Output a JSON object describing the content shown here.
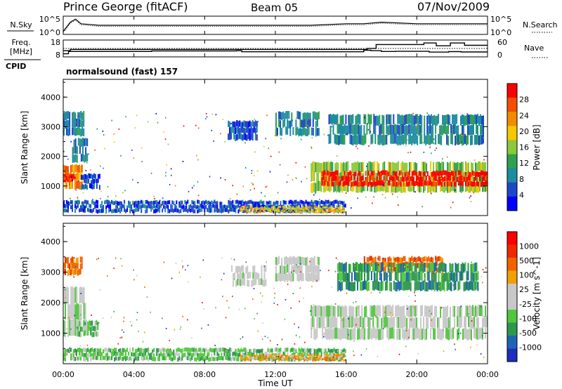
{
  "header": {
    "station": "Prince George (fitACF)",
    "beam": "Beam 05",
    "date": "07/Nov/2009"
  },
  "colors": {
    "power_scale": [
      "#0000ff",
      "#1e46c8",
      "#1e8ca0",
      "#2fa050",
      "#8cc83c",
      "#f5c800",
      "#f08c00",
      "#f05000",
      "#ff0000"
    ],
    "velocity_scale": [
      "#1e2dbe",
      "#1e64b4",
      "#2f9650",
      "#50c83c",
      "#c8c8c8",
      "#c8c8c8",
      "#f0a000",
      "#f06400",
      "#f02800",
      "#ff0000"
    ],
    "gray": "#c8c8c8"
  },
  "chart_data": [
    {
      "type": "line",
      "panel": "nsky-nsearch",
      "left_label": "N.Sky",
      "right_label": "N.Search",
      "left_ticks": [
        "10^5",
        "10^0"
      ],
      "right_ticks": [
        "10^5",
        "10^0"
      ],
      "x_hours": [
        0.0,
        0.4,
        0.7,
        1.0,
        2.0,
        4.0,
        6.0,
        8.0,
        10.0,
        12.0,
        14.0,
        16.0,
        17.0,
        18.0,
        20.0,
        22.0,
        24.0
      ],
      "nsky_level": [
        1,
        7,
        9,
        6,
        5,
        5,
        5,
        5,
        5,
        5,
        5,
        6,
        6,
        7,
        6,
        6,
        6
      ]
    },
    {
      "type": "line",
      "panel": "freq-nave",
      "left_label": "Freq.",
      "left_unit": "[MHz]",
      "right_label": "Nave",
      "left_ticks": [
        "18",
        "8"
      ],
      "right_ticks": [
        "60",
        "0"
      ],
      "freq_steps": [
        [
          0.0,
          10.0
        ],
        [
          0.3,
          11.5
        ],
        [
          5.0,
          11.8
        ],
        [
          9.8,
          12.0
        ],
        [
          10.1,
          11.3
        ],
        [
          15.8,
          11.3
        ],
        [
          17.0,
          12.3
        ],
        [
          17.4,
          12.0
        ],
        [
          18.0,
          11.5
        ],
        [
          18.8,
          11.6
        ],
        [
          20.7,
          11.1
        ],
        [
          21.8,
          11.4
        ],
        [
          22.5,
          11.2
        ],
        [
          24.0,
          11.2
        ]
      ],
      "nave_steps": [
        [
          0.0,
          12.0
        ],
        [
          0.4,
          12.8
        ],
        [
          17.2,
          13.5
        ],
        [
          17.7,
          16.0
        ],
        [
          20.3,
          16.0
        ],
        [
          20.4,
          17.0
        ],
        [
          21.0,
          17.0
        ],
        [
          21.1,
          15.2
        ],
        [
          21.8,
          15.2
        ],
        [
          21.9,
          17.0
        ],
        [
          22.6,
          17.0
        ],
        [
          22.7,
          15.5
        ],
        [
          24.0,
          15.5
        ]
      ]
    },
    {
      "type": "heatmap",
      "panel": "power",
      "cpid_label": "CPID",
      "cpid_text": "normalsound (fast) 157",
      "ylabel": "Slant Range [km]",
      "ylim": [
        0,
        4600
      ],
      "yticks": [
        "4000",
        "3000",
        "2000",
        "1000"
      ],
      "colorbar_label": "Power [dB]",
      "colorbar_ticks": [
        "28",
        "24",
        "20",
        "16",
        "12",
        "8",
        "4"
      ],
      "regions": [
        {
          "t0": 0.0,
          "t1": 1.1,
          "r0": 900,
          "r1": 1700,
          "level": 6
        },
        {
          "t0": 0.0,
          "t1": 1.2,
          "r0": 2700,
          "r1": 3500,
          "level": 2
        },
        {
          "t0": 0.0,
          "t1": 0.7,
          "r0": 1150,
          "r1": 1400,
          "level": 8
        },
        {
          "t0": 0.5,
          "t1": 1.4,
          "r0": 1800,
          "r1": 2600,
          "level": 2
        },
        {
          "t0": 1.0,
          "t1": 2.1,
          "r0": 900,
          "r1": 1400,
          "level": 1
        },
        {
          "t0": 9.3,
          "t1": 11.0,
          "r0": 2550,
          "r1": 3200,
          "level": 1
        },
        {
          "t0": 12.0,
          "t1": 14.5,
          "r0": 2700,
          "r1": 3500,
          "level": 2
        },
        {
          "t0": 14.0,
          "t1": 24.0,
          "r0": 800,
          "r1": 1800,
          "level": 4
        },
        {
          "t0": 14.6,
          "t1": 24.0,
          "r0": 1000,
          "r1": 1500,
          "level": 8
        },
        {
          "t0": 15.0,
          "t1": 23.8,
          "r0": 2400,
          "r1": 3400,
          "level": 2
        },
        {
          "t0": 0.0,
          "t1": 16.0,
          "r0": 100,
          "r1": 500,
          "level": 1
        },
        {
          "t0": 10.0,
          "t1": 16.0,
          "r0": 100,
          "r1": 300,
          "level": 5
        }
      ]
    },
    {
      "type": "heatmap",
      "panel": "velocity",
      "ylabel": "Slant Range [km]",
      "ylim": [
        0,
        4600
      ],
      "yticks": [
        "4000",
        "3000",
        "2000",
        "1000"
      ],
      "xlabel": "Time UT",
      "xlim": [
        0,
        24
      ],
      "xticks": [
        "00:00",
        "04:00",
        "08:00",
        "12:00",
        "16:00",
        "20:00",
        "00:00"
      ],
      "colorbar_label": "Velocity [m s^-1]",
      "colorbar_ticks": [
        "1000",
        "500",
        "100",
        "25",
        "-25",
        "-100",
        "-500",
        "-1000"
      ],
      "regions": [
        {
          "t0": 0.0,
          "t1": 1.3,
          "r0": 900,
          "r1": 2500,
          "level": 4
        },
        {
          "t0": 0.0,
          "t1": 1.1,
          "r0": 2900,
          "r1": 3500,
          "level": 7
        },
        {
          "t0": 0.8,
          "t1": 2.0,
          "r0": 900,
          "r1": 1400,
          "level": 3
        },
        {
          "t0": 9.5,
          "t1": 11.5,
          "r0": 2550,
          "r1": 3200,
          "level": 4
        },
        {
          "t0": 12.0,
          "t1": 14.5,
          "r0": 2700,
          "r1": 3500,
          "level": 4
        },
        {
          "t0": 14.0,
          "t1": 24.0,
          "r0": 800,
          "r1": 1900,
          "level": 4
        },
        {
          "t0": 17.0,
          "t1": 21.5,
          "r0": 3000,
          "r1": 3500,
          "level": 7
        },
        {
          "t0": 15.5,
          "t1": 23.5,
          "r0": 2400,
          "r1": 3300,
          "level": 2
        },
        {
          "t0": 0.0,
          "t1": 16.0,
          "r0": 100,
          "r1": 500,
          "level": 3
        },
        {
          "t0": 10.0,
          "t1": 16.0,
          "r0": 100,
          "r1": 300,
          "level": 6
        }
      ]
    }
  ]
}
